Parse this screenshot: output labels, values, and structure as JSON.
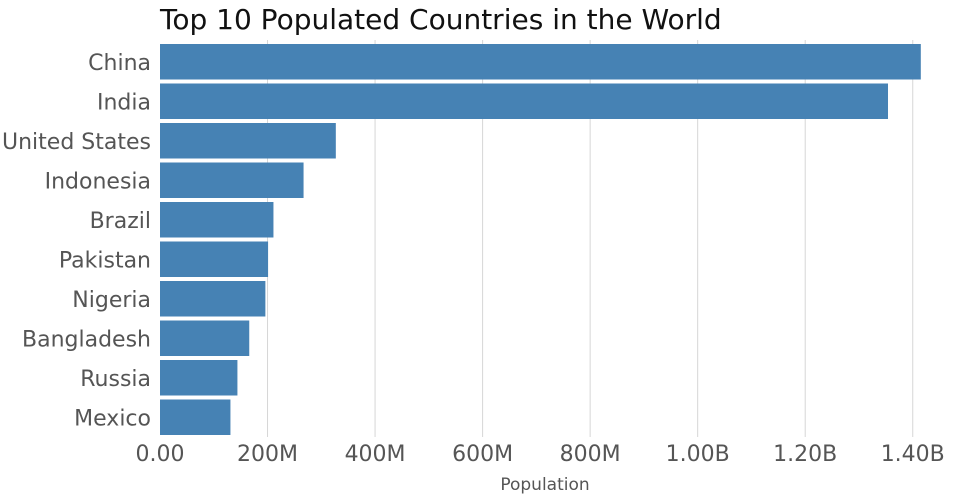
{
  "chart_data": {
    "type": "bar",
    "orientation": "horizontal",
    "title": "Top 10 Populated Countries in the World",
    "xlabel": "Population",
    "ylabel": "",
    "categories": [
      "China",
      "India",
      "United States",
      "Indonesia",
      "Brazil",
      "Pakistan",
      "Nigeria",
      "Bangladesh",
      "Russia",
      "Mexico"
    ],
    "values": [
      1415000000,
      1354000000,
      327000000,
      267000000,
      211000000,
      201000000,
      196000000,
      166000000,
      144000000,
      131000000
    ],
    "xlim": [
      0,
      1460000000
    ],
    "xticks": [
      0,
      200000000,
      400000000,
      600000000,
      800000000,
      1000000000,
      1200000000,
      1400000000
    ],
    "xtick_labels": [
      "0.00",
      "200M",
      "400M",
      "600M",
      "800M",
      "1.00B",
      "1.20B",
      "1.40B"
    ],
    "grid": "vertical",
    "legend": "none",
    "bar_color": "#4682b4"
  }
}
